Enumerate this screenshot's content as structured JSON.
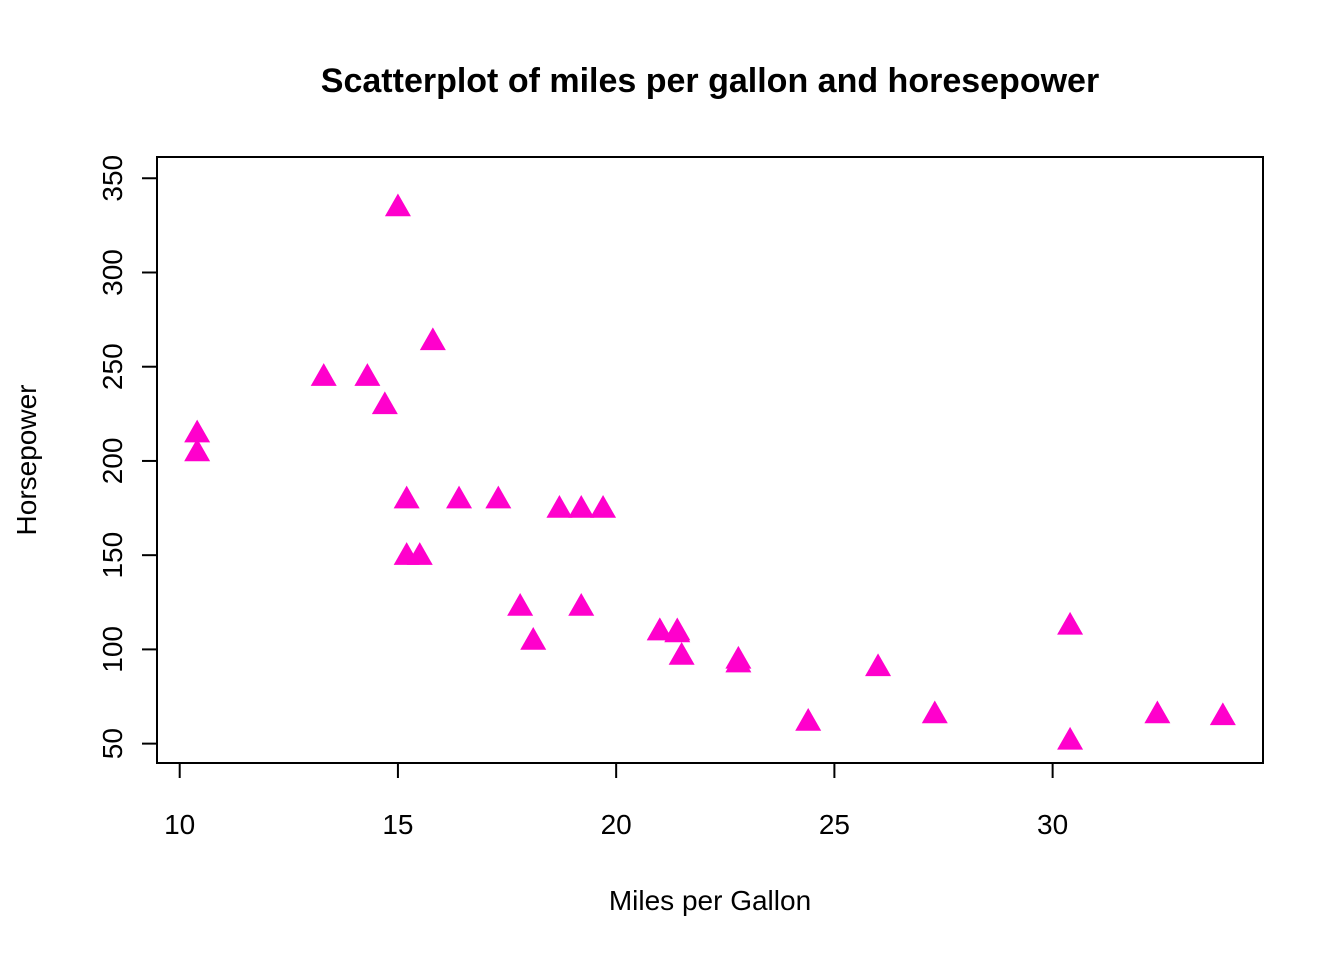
{
  "chart_data": {
    "type": "scatter",
    "title": "Scatterplot of miles per gallon and horesepower",
    "xlabel": "Miles per Gallon",
    "ylabel": "Horsepower",
    "xlim": [
      9.48,
      34.82
    ],
    "ylim": [
      39.72,
      361.28
    ],
    "xticks": [
      10,
      15,
      20,
      25,
      30
    ],
    "yticks": [
      50,
      100,
      150,
      200,
      250,
      300,
      350
    ],
    "grid": false,
    "marker": "filled-triangle",
    "marker_color": "#ff00cc",
    "points": [
      {
        "x": 21.0,
        "y": 110
      },
      {
        "x": 21.0,
        "y": 110
      },
      {
        "x": 22.8,
        "y": 93
      },
      {
        "x": 21.4,
        "y": 110
      },
      {
        "x": 18.7,
        "y": 175
      },
      {
        "x": 18.1,
        "y": 105
      },
      {
        "x": 14.3,
        "y": 245
      },
      {
        "x": 24.4,
        "y": 62
      },
      {
        "x": 22.8,
        "y": 95
      },
      {
        "x": 19.2,
        "y": 123
      },
      {
        "x": 17.8,
        "y": 123
      },
      {
        "x": 16.4,
        "y": 180
      },
      {
        "x": 17.3,
        "y": 180
      },
      {
        "x": 15.2,
        "y": 180
      },
      {
        "x": 10.4,
        "y": 205
      },
      {
        "x": 10.4,
        "y": 215
      },
      {
        "x": 14.7,
        "y": 230
      },
      {
        "x": 32.4,
        "y": 66
      },
      {
        "x": 30.4,
        "y": 52
      },
      {
        "x": 33.9,
        "y": 65
      },
      {
        "x": 21.5,
        "y": 97
      },
      {
        "x": 15.5,
        "y": 150
      },
      {
        "x": 15.2,
        "y": 150
      },
      {
        "x": 13.3,
        "y": 245
      },
      {
        "x": 19.2,
        "y": 175
      },
      {
        "x": 27.3,
        "y": 66
      },
      {
        "x": 26.0,
        "y": 91
      },
      {
        "x": 30.4,
        "y": 113
      },
      {
        "x": 15.8,
        "y": 264
      },
      {
        "x": 19.7,
        "y": 175
      },
      {
        "x": 15.0,
        "y": 335
      },
      {
        "x": 21.4,
        "y": 109
      }
    ]
  }
}
